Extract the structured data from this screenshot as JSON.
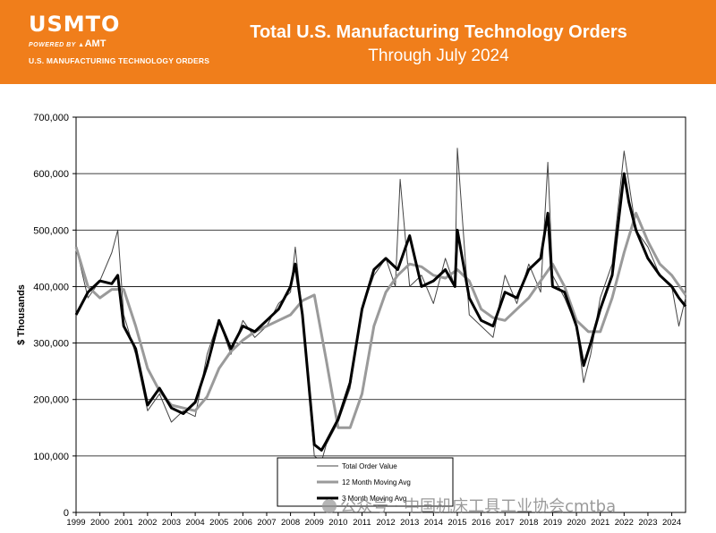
{
  "header": {
    "brand_name": "USMTO",
    "powered_by": "POWERED BY",
    "powered_brand": "AMT",
    "tagline": "U.S. MANUFACTURING TECHNOLOGY ORDERS",
    "title": "Total U.S. Manufacturing Technology Orders",
    "subtitle": "Through July 2024"
  },
  "watermark": "公众号 · 中国机床工具工业协会cmtba",
  "colors": {
    "banner": "#f07e1b",
    "total_line": "#444444",
    "avg12_line": "#9a9a9a",
    "avg3_line": "#000000"
  },
  "chart_data": {
    "type": "line",
    "ylabel": "$ Thousands",
    "xlabel": "",
    "ylim": [
      0,
      700000
    ],
    "yticks": [
      "0",
      "100,000",
      "200,000",
      "300,000",
      "400,000",
      "500,000",
      "600,000",
      "700,000"
    ],
    "xticks": [
      "1999",
      "2000",
      "2001",
      "2002",
      "2003",
      "2004",
      "2005",
      "2006",
      "2007",
      "2008",
      "2009",
      "2010",
      "2011",
      "2012",
      "2013",
      "2014",
      "2015",
      "2016",
      "2017",
      "2018",
      "2019",
      "2020",
      "2021",
      "2022",
      "2023",
      "2024"
    ],
    "xrange": [
      1999.0,
      2024.58
    ],
    "grid": "horizontal",
    "legend": {
      "placement": "bottom-center",
      "entries": [
        "Total Order Value",
        "12 Month Moving Avg",
        "3 Month Moving Avg"
      ]
    },
    "series": [
      {
        "name": "Total Order Value",
        "x": [
          1999.0,
          1999.5,
          2000.0,
          2000.5,
          2000.75,
          2001.0,
          2001.5,
          2002.0,
          2002.5,
          2003.0,
          2003.5,
          2004.0,
          2004.5,
          2004.9,
          2005.0,
          2005.5,
          2006.0,
          2006.5,
          2007.0,
          2007.5,
          2008.0,
          2008.2,
          2008.5,
          2009.0,
          2009.3,
          2009.5,
          2010.0,
          2010.5,
          2011.0,
          2011.5,
          2012.0,
          2012.4,
          2012.6,
          2013.0,
          2013.5,
          2014.0,
          2014.5,
          2014.9,
          2015.0,
          2015.5,
          2016.0,
          2016.5,
          2017.0,
          2017.5,
          2018.0,
          2018.5,
          2018.8,
          2019.0,
          2019.5,
          2020.0,
          2020.3,
          2020.6,
          2021.0,
          2021.5,
          2022.0,
          2022.5,
          2023.0,
          2023.5,
          2024.0,
          2024.3,
          2024.58
        ],
        "values": [
          470000,
          380000,
          410000,
          460000,
          500000,
          350000,
          280000,
          180000,
          210000,
          160000,
          180000,
          170000,
          280000,
          330000,
          340000,
          280000,
          340000,
          310000,
          330000,
          370000,
          390000,
          470000,
          350000,
          100000,
          90000,
          120000,
          160000,
          220000,
          360000,
          420000,
          450000,
          400000,
          590000,
          400000,
          420000,
          370000,
          450000,
          400000,
          645000,
          350000,
          330000,
          310000,
          420000,
          370000,
          440000,
          390000,
          620000,
          420000,
          380000,
          330000,
          230000,
          280000,
          380000,
          440000,
          640000,
          500000,
          470000,
          420000,
          400000,
          330000,
          380000
        ]
      },
      {
        "name": "12 Month Moving Avg",
        "x": [
          1999.0,
          1999.5,
          2000.0,
          2000.5,
          2001.0,
          2001.5,
          2002.0,
          2002.5,
          2003.0,
          2003.5,
          2004.0,
          2004.5,
          2005.0,
          2005.5,
          2006.0,
          2006.5,
          2007.0,
          2007.5,
          2008.0,
          2008.5,
          2009.0,
          2009.5,
          2010.0,
          2010.5,
          2011.0,
          2011.5,
          2012.0,
          2012.5,
          2013.0,
          2013.5,
          2014.0,
          2014.5,
          2015.0,
          2015.5,
          2016.0,
          2016.5,
          2017.0,
          2017.5,
          2018.0,
          2018.5,
          2019.0,
          2019.5,
          2020.0,
          2020.5,
          2021.0,
          2021.5,
          2022.0,
          2022.5,
          2023.0,
          2023.5,
          2024.0,
          2024.58
        ],
        "values": [
          470000,
          400000,
          380000,
          395000,
          395000,
          330000,
          255000,
          215000,
          190000,
          185000,
          180000,
          205000,
          255000,
          285000,
          305000,
          320000,
          330000,
          340000,
          350000,
          375000,
          385000,
          270000,
          150000,
          150000,
          210000,
          330000,
          390000,
          420000,
          440000,
          435000,
          420000,
          415000,
          430000,
          410000,
          360000,
          345000,
          340000,
          360000,
          380000,
          410000,
          440000,
          400000,
          340000,
          320000,
          320000,
          380000,
          460000,
          530000,
          480000,
          440000,
          420000,
          385000
        ]
      },
      {
        "name": "3 Month Moving Avg",
        "x": [
          1999.0,
          1999.5,
          2000.0,
          2000.5,
          2000.75,
          2001.0,
          2001.5,
          2002.0,
          2002.5,
          2003.0,
          2003.5,
          2004.0,
          2004.5,
          2005.0,
          2005.5,
          2006.0,
          2006.5,
          2007.0,
          2007.5,
          2008.0,
          2008.2,
          2008.5,
          2009.0,
          2009.3,
          2009.5,
          2010.0,
          2010.5,
          2011.0,
          2011.5,
          2012.0,
          2012.5,
          2013.0,
          2013.5,
          2014.0,
          2014.5,
          2014.9,
          2015.0,
          2015.5,
          2016.0,
          2016.5,
          2017.0,
          2017.5,
          2018.0,
          2018.5,
          2018.8,
          2019.0,
          2019.5,
          2020.0,
          2020.3,
          2020.6,
          2021.0,
          2021.5,
          2022.0,
          2022.2,
          2022.5,
          2023.0,
          2023.5,
          2024.0,
          2024.3,
          2024.58
        ],
        "values": [
          350000,
          390000,
          410000,
          405000,
          420000,
          330000,
          290000,
          190000,
          220000,
          185000,
          175000,
          195000,
          260000,
          340000,
          290000,
          330000,
          320000,
          340000,
          360000,
          400000,
          440000,
          350000,
          120000,
          110000,
          125000,
          165000,
          230000,
          360000,
          430000,
          450000,
          430000,
          490000,
          400000,
          410000,
          430000,
          400000,
          500000,
          380000,
          340000,
          330000,
          390000,
          380000,
          430000,
          450000,
          530000,
          400000,
          390000,
          330000,
          260000,
          300000,
          360000,
          420000,
          600000,
          550000,
          500000,
          450000,
          420000,
          400000,
          380000,
          365000
        ]
      }
    ]
  }
}
